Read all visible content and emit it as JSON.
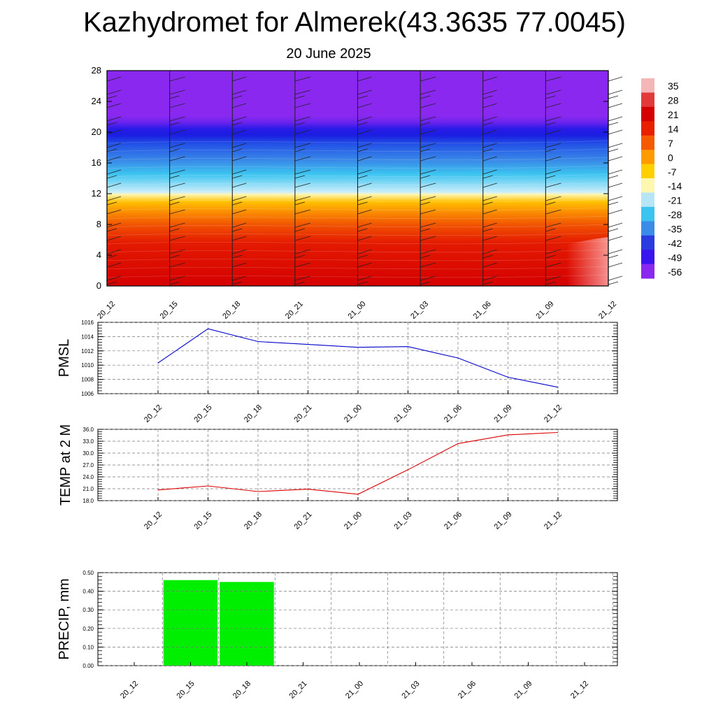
{
  "title": "Kazhydromet for Almerek(43.3635 77.0045)",
  "subtitle": "20 June 2025",
  "time_labels": [
    "20_12",
    "20_15",
    "20_18",
    "20_21",
    "21_00",
    "21_03",
    "21_06",
    "21_09",
    "21_12"
  ],
  "chart_data": [
    {
      "type": "heatmap",
      "y_ticks": [
        0,
        4,
        8,
        12,
        16,
        20,
        24,
        28
      ],
      "ylim": [
        0,
        28
      ],
      "colorbar": {
        "labels": [
          "35",
          "28",
          "21",
          "14",
          "7",
          "0",
          "-7",
          "-14",
          "-21",
          "-28",
          "-35",
          "-42",
          "-49",
          "-56"
        ],
        "colors": [
          "#f4b6b6",
          "#e23a3a",
          "#d40000",
          "#e82000",
          "#f55a00",
          "#ff9a00",
          "#ffd000",
          "#fff7b0",
          "#b6e6f5",
          "#3cc4f0",
          "#3a8ce8",
          "#2a3ce0",
          "#3a14ee",
          "#8a28f0"
        ]
      }
    },
    {
      "type": "line",
      "ylabel": "PMSL",
      "x": [
        "20_12",
        "20_15",
        "20_18",
        "20_21",
        "21_00",
        "21_03",
        "21_06",
        "21_09",
        "21_12"
      ],
      "values": [
        1010.3,
        1015.1,
        1013.3,
        1012.9,
        1012.5,
        1012.6,
        1011.0,
        1008.3,
        1006.9
      ],
      "ylim": [
        1006,
        1016
      ],
      "y_ticks": [
        "1006",
        "1008",
        "1010",
        "1012",
        "1014",
        "1016"
      ],
      "color": "#0000cc",
      "grid": true
    },
    {
      "type": "line",
      "ylabel": "TEMP at 2 M",
      "x": [
        "20_12",
        "20_15",
        "20_18",
        "20_21",
        "21_00",
        "21_03",
        "21_06",
        "21_09",
        "21_12"
      ],
      "values": [
        20.7,
        21.7,
        20.3,
        20.9,
        19.6,
        25.8,
        32.4,
        34.6,
        35.2
      ],
      "ylim": [
        18,
        36
      ],
      "y_ticks": [
        "18.0",
        "21.0",
        "24.0",
        "27.0",
        "30.0",
        "33.0",
        "36.0"
      ],
      "color": "#dd0000",
      "grid": true
    },
    {
      "type": "bar",
      "ylabel": "PRECIP, mm",
      "categories": [
        "20_12",
        "20_15",
        "20_18",
        "20_21",
        "21_00",
        "21_03",
        "21_06",
        "21_09",
        "21_12"
      ],
      "values": [
        0,
        0.46,
        0.45,
        0,
        0,
        0,
        0,
        0,
        0
      ],
      "ylim": [
        0,
        0.5
      ],
      "y_ticks": [
        "0.00",
        "0.10",
        "0.20",
        "0.30",
        "0.40",
        "0.50"
      ],
      "color": "#00ee00",
      "grid": true
    }
  ]
}
